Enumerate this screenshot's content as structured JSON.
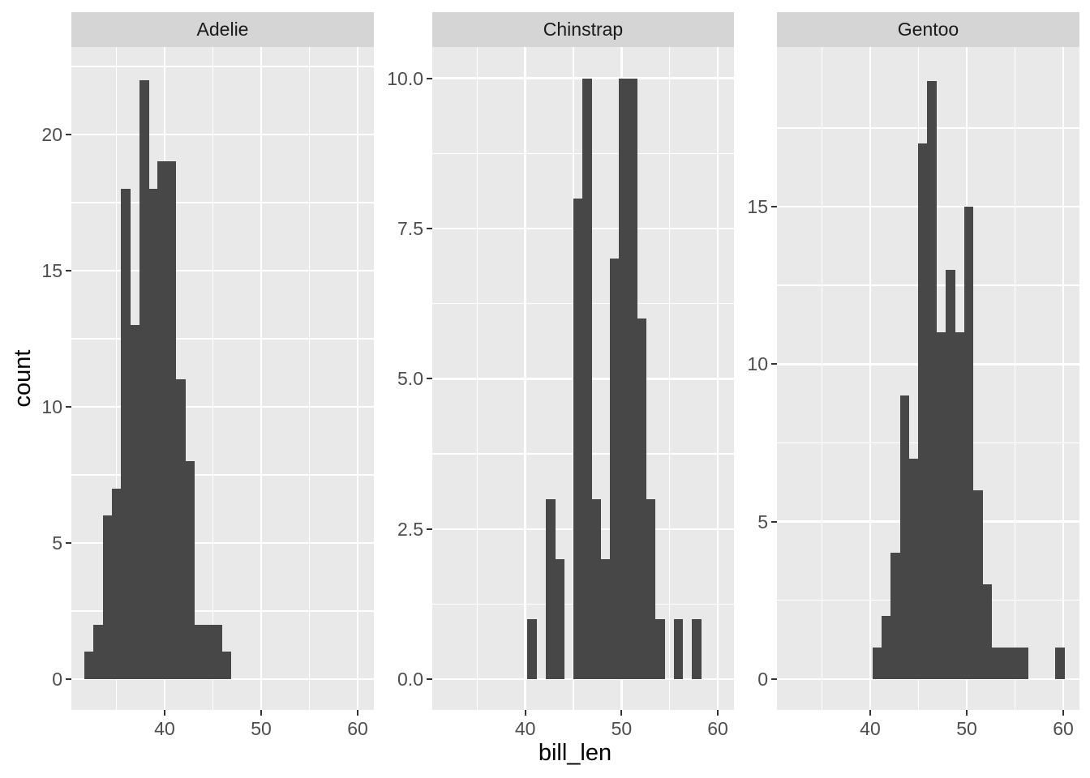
{
  "chart_data": {
    "type": "histogram",
    "title": "",
    "xlabel": "bill_len",
    "ylabel": "count",
    "facet_by": "species",
    "legend": "none",
    "grid": "on",
    "x_domain": [
      30.34,
      61.68
    ],
    "x_major_ticks": [
      40,
      50,
      60
    ],
    "x_tick_labels": [
      "40",
      "50",
      "60"
    ],
    "x_minor_gridlines": [
      35,
      45,
      55
    ],
    "bin_origin": 31.7,
    "bin_width": 0.9483,
    "facets": [
      {
        "label": "Adelie",
        "y_domain": [
          -1.13,
          23.21
        ],
        "y_tick_values": [
          0,
          5,
          10,
          15,
          20
        ],
        "y_tick_labels": [
          "0",
          "5",
          "10",
          "15",
          "20"
        ],
        "y_minor_gridlines": [
          2.5,
          7.5,
          12.5,
          17.5,
          22.5
        ],
        "first_bin_index": 0,
        "x_first_edge": 31.7,
        "bin_counts": [
          1,
          2,
          6,
          7,
          18,
          13,
          22,
          18,
          19,
          19,
          11,
          8,
          2,
          2,
          2,
          1
        ]
      },
      {
        "label": "Chinstrap",
        "y_domain": [
          -0.51,
          10.52
        ],
        "y_tick_values": [
          0,
          2.5,
          5,
          7.5,
          10
        ],
        "y_tick_labels": [
          "0.0",
          "2.5",
          "5.0",
          "7.5",
          "10.0"
        ],
        "y_minor_gridlines": [
          1.25,
          3.75,
          6.25,
          8.75
        ],
        "first_bin_index": 9,
        "x_first_edge": 40.23,
        "bin_counts": [
          1,
          0,
          3,
          2,
          0,
          8,
          10,
          3,
          2,
          7,
          10,
          10,
          6,
          3,
          1,
          0,
          1,
          0,
          1
        ]
      },
      {
        "label": "Gentoo",
        "y_domain": [
          -0.98,
          20.07
        ],
        "y_tick_values": [
          0,
          5,
          10,
          15
        ],
        "y_tick_labels": [
          "0",
          "5",
          "10",
          "15"
        ],
        "y_minor_gridlines": [
          2.5,
          7.5,
          12.5,
          17.5
        ],
        "first_bin_index": 9,
        "x_first_edge": 40.23,
        "bin_counts": [
          1,
          2,
          4,
          9,
          7,
          17,
          19,
          11,
          13,
          11,
          15,
          6,
          3,
          1,
          1,
          1,
          1,
          0,
          0,
          0,
          1
        ]
      }
    ]
  },
  "style": {
    "background": "#ffffff",
    "panel_bg": "#e9e9e9",
    "strip_bg": "#d5d5d5",
    "grid_color": "#ffffff",
    "bar_color": "#474747",
    "tick_label_color": "#4d4d4d",
    "tick_mark_color": "#333333",
    "axis_title_color": "#000000",
    "strip_text_color": "#1a1a1a"
  }
}
